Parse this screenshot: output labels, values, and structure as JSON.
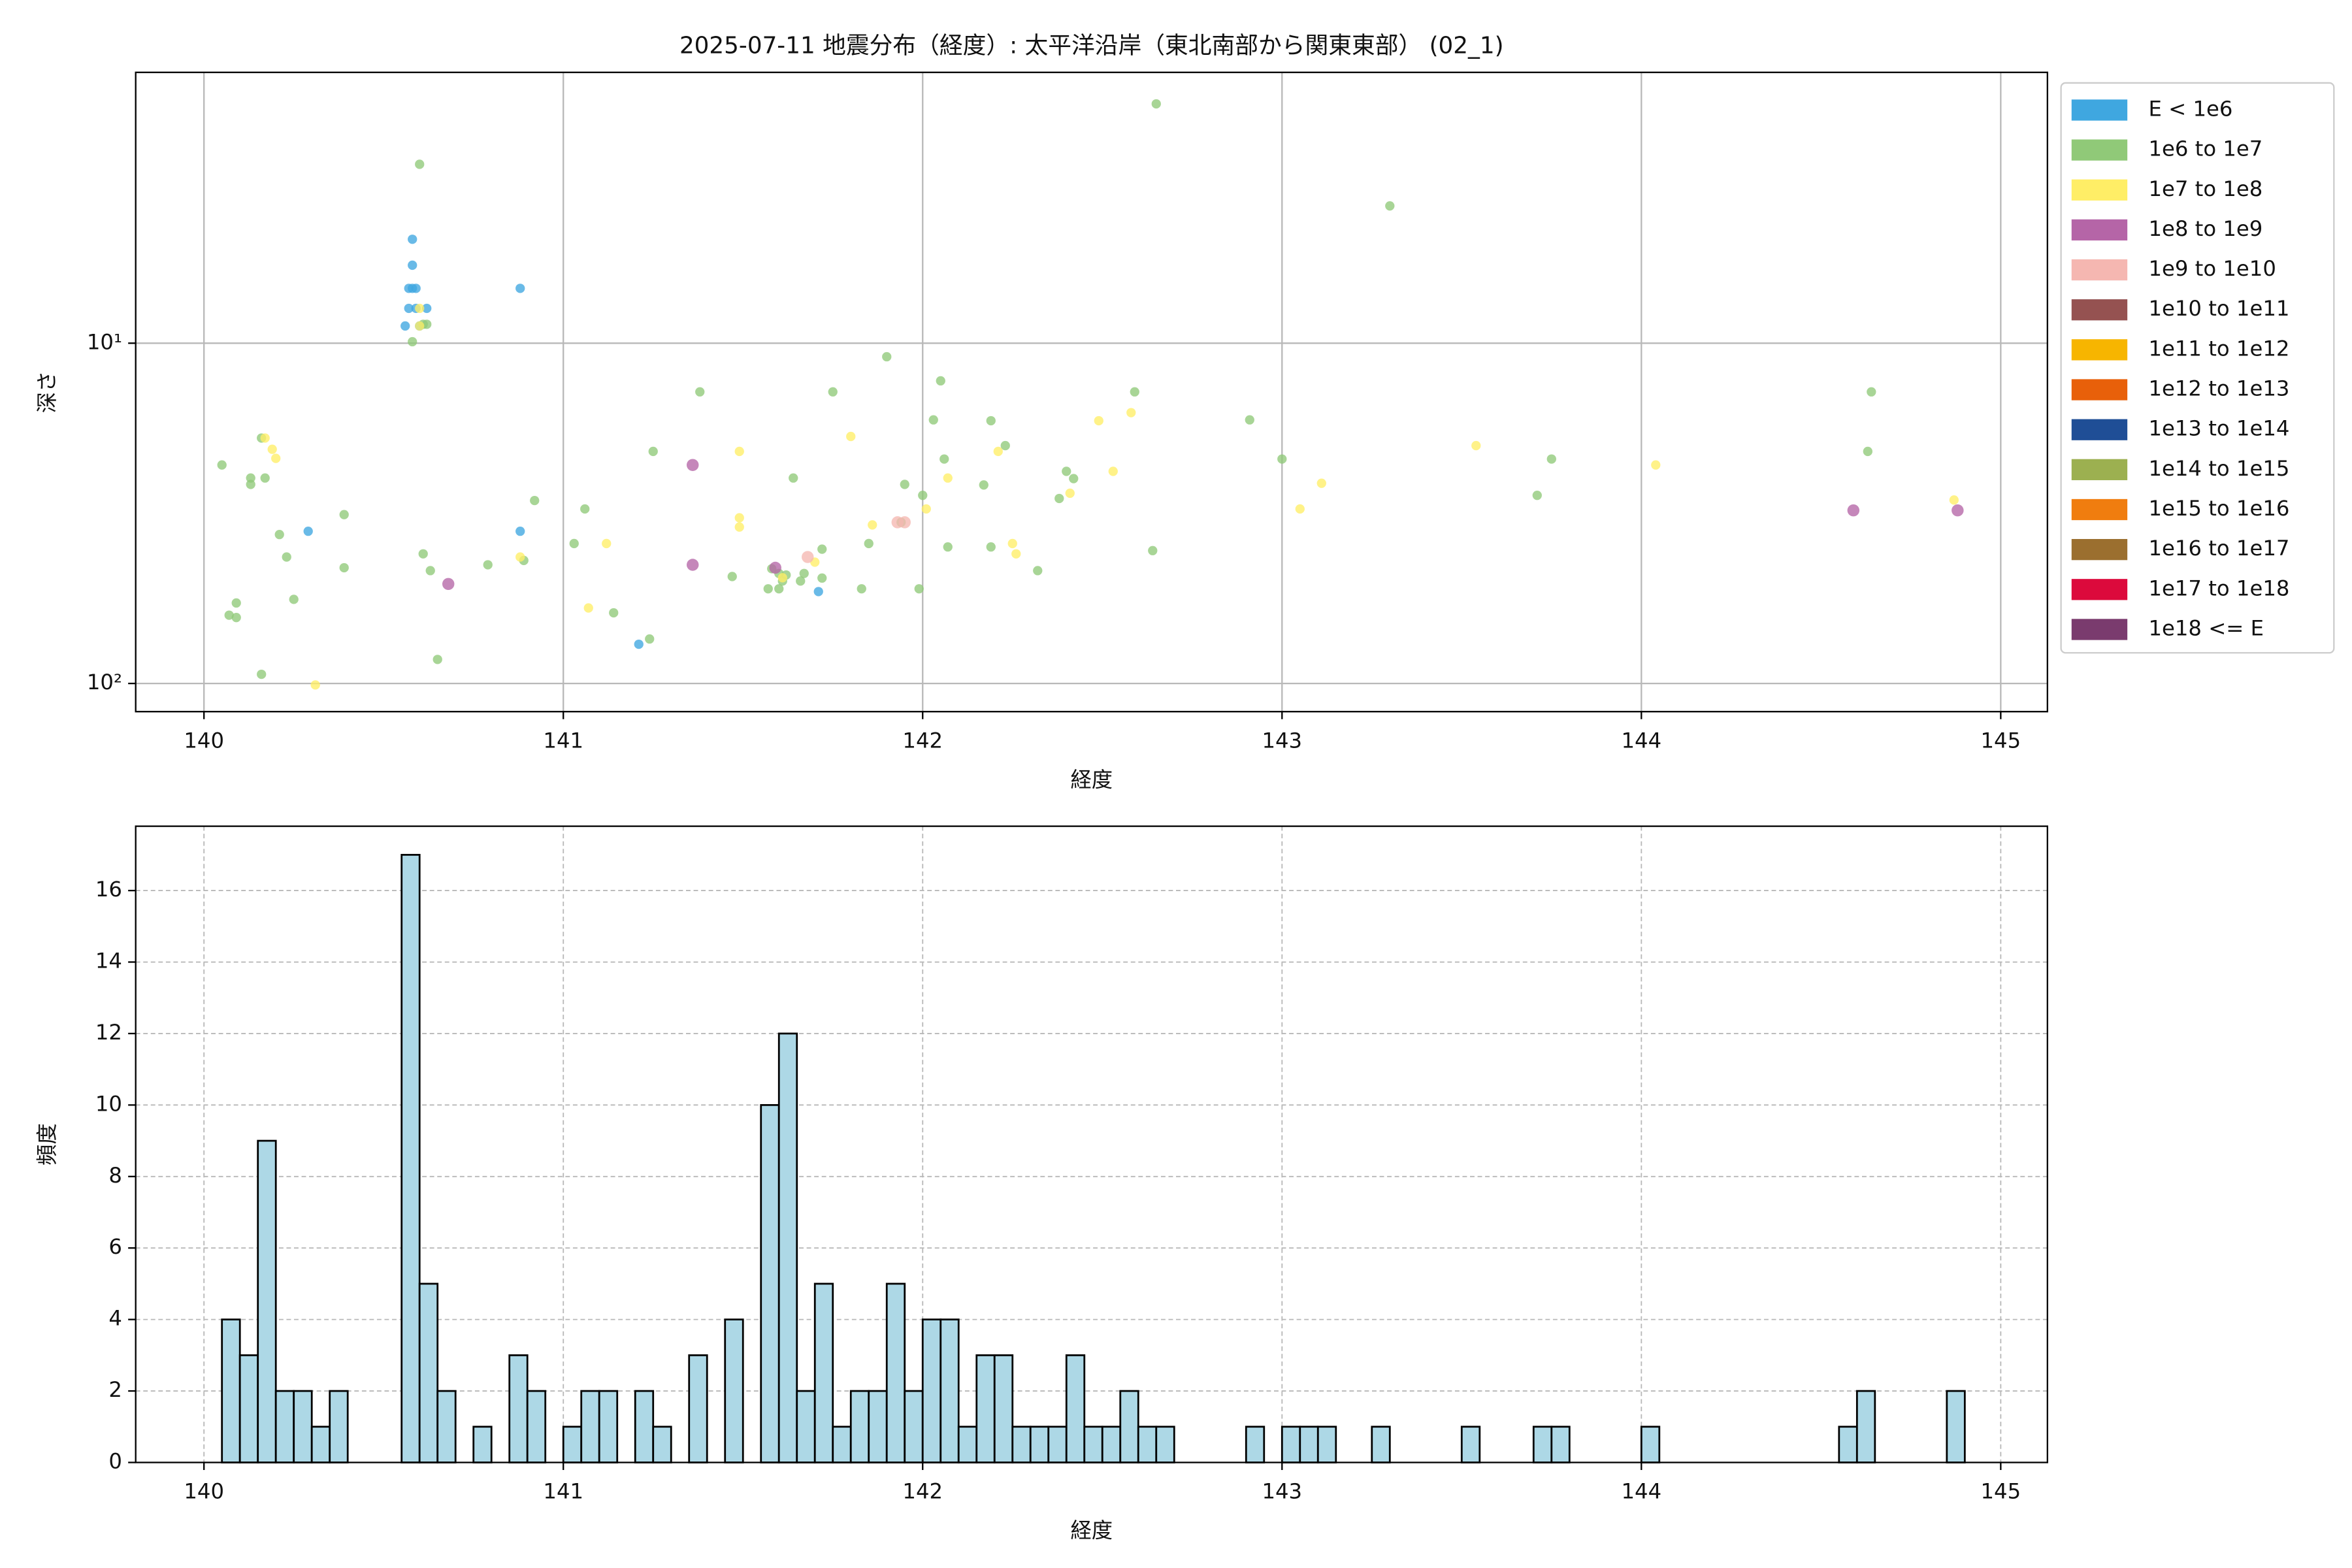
{
  "chart_data": [
    {
      "type": "scatter",
      "title": "2025-07-11 地震分布（経度）: 太平洋沿岸（東北南部から関東東部） (02_1)",
      "xlabel": "経度",
      "ylabel": "深さ",
      "xlim": [
        139.81,
        145.13
      ],
      "ylim": [
        121,
        1.6
      ],
      "yscale": "log",
      "xticks": [
        140,
        141,
        142,
        143,
        144,
        145
      ],
      "yticks": [
        {
          "value": 10,
          "label": "10¹"
        },
        {
          "value": 100,
          "label": "10²"
        }
      ],
      "grid": true,
      "grid_style": "solid",
      "legend": "outside-right",
      "series": [
        {
          "name": "E < 1e6",
          "color": "#3fa7e0",
          "x": [
            140.58,
            140.58,
            140.57,
            140.58,
            140.59,
            140.57,
            140.59,
            140.62,
            140.56,
            140.6,
            140.88,
            140.29,
            140.88,
            141.21,
            141.71
          ],
          "y": [
            4.95,
            5.9,
            6.9,
            6.9,
            6.9,
            7.9,
            7.9,
            7.9,
            8.9,
            8.9,
            6.9,
            35.7,
            35.7,
            76.7,
            53.7
          ]
        },
        {
          "name": "1e6 to 1e7",
          "color": "#90c978",
          "x": [
            142.65,
            140.6,
            143.3,
            144.64,
            141.9,
            142.05,
            141.38,
            141.75,
            142.59,
            142.03,
            142.19,
            142.91,
            142.23,
            144.63,
            141.25,
            142.06,
            143.75,
            143.0,
            140.05,
            142.4,
            142.42,
            140.13,
            140.13,
            140.17,
            140.16,
            141.95,
            141.64,
            142.17,
            143.71,
            142.38,
            140.92,
            142.0,
            140.39,
            141.06,
            141.94,
            140.21,
            141.85,
            141.03,
            142.07,
            142.19,
            140.23,
            140.61,
            142.64,
            141.72,
            140.89,
            140.79,
            140.63,
            140.39,
            142.32,
            141.58,
            141.6,
            141.62,
            141.61,
            141.47,
            141.66,
            141.57,
            141.6,
            141.72,
            141.83,
            141.99,
            141.67,
            140.25,
            140.07,
            140.09,
            140.09,
            141.14,
            141.24,
            140.16,
            140.65,
            140.58,
            140.61,
            140.62
          ],
          "y": [
            1.98,
            2.98,
            3.95,
            13.9,
            10.96,
            12.9,
            13.9,
            13.9,
            13.9,
            16.8,
            16.9,
            16.8,
            20,
            20.8,
            20.8,
            21.9,
            21.9,
            21.9,
            22.8,
            23.8,
            25,
            24.9,
            26,
            24.9,
            19,
            26,
            24.9,
            26.1,
            28,
            28.6,
            29,
            28,
            31.9,
            30.7,
            33.6,
            36.5,
            38.8,
            38.8,
            39.7,
            39.7,
            42.5,
            41.6,
            40.7,
            40.3,
            43.5,
            44.8,
            46.6,
            45.7,
            46.6,
            46,
            47.5,
            48,
            50,
            48.5,
            50,
            52.7,
            52.7,
            49,
            52.7,
            52.7,
            47.5,
            56.6,
            63,
            64,
            58,
            62,
            74,
            94,
            85,
            9.9,
            8.8,
            8.8
          ]
        },
        {
          "name": "1e7 to 1e8",
          "color": "#ffee66",
          "x": [
            140.17,
            140.19,
            140.2,
            143.54,
            144.04,
            144.87,
            143.11,
            143.05,
            142.49,
            142.58,
            142.53,
            142.21,
            141.8,
            141.49,
            141.49,
            141.49,
            142.01,
            142.07,
            142.41,
            141.86,
            141.12,
            141.07,
            140.88,
            141.61,
            142.25,
            142.26,
            140.31,
            141.7,
            140.6,
            140.6
          ],
          "y": [
            19,
            20.5,
            21.8,
            20,
            22.8,
            28.9,
            25.8,
            30.7,
            16.9,
            16,
            23.8,
            20.8,
            18.8,
            20.8,
            32.6,
            34.7,
            30.7,
            24.9,
            27.6,
            34.2,
            38.8,
            60,
            42.5,
            48.9,
            38.8,
            41.6,
            101,
            44,
            7.9,
            8.9
          ]
        },
        {
          "name": "1e8 to 1e9",
          "color": "#b565a7",
          "x": [
            141.36,
            141.36,
            140.68,
            144.59,
            144.88,
            141.59
          ],
          "y": [
            22.8,
            44.8,
            51,
            31,
            31,
            45.7
          ]
        },
        {
          "name": "1e9 to 1e10",
          "color": "#f5b7b1",
          "x": [
            141.68,
            141.93,
            141.95
          ],
          "y": [
            42.5,
            33.6,
            33.6
          ]
        },
        {
          "name": "1e10 to 1e11",
          "color": "#955251",
          "x": [],
          "y": []
        },
        {
          "name": "1e11 to 1e12",
          "color": "#f7b500",
          "x": [],
          "y": []
        },
        {
          "name": "1e12 to 1e13",
          "color": "#e8600a",
          "x": [],
          "y": []
        },
        {
          "name": "1e13 to 1e14",
          "color": "#1f4e96",
          "x": [],
          "y": []
        },
        {
          "name": "1e14 to 1e15",
          "color": "#9cb050",
          "x": [],
          "y": []
        },
        {
          "name": "1e15 to 1e16",
          "color": "#f07d0f",
          "x": [],
          "y": []
        },
        {
          "name": "1e16 to 1e17",
          "color": "#9b6f2f",
          "x": [],
          "y": []
        },
        {
          "name": "1e17 to 1e18",
          "color": "#dc0a3c",
          "x": [],
          "y": []
        },
        {
          "name": "1e18 <= E",
          "color": "#7a3b6e",
          "x": [],
          "y": []
        }
      ]
    },
    {
      "type": "histogram",
      "xlabel": "経度",
      "ylabel": "頻度",
      "xlim": [
        139.81,
        145.13
      ],
      "ylim": [
        0,
        17.8
      ],
      "xticks": [
        140,
        141,
        142,
        143,
        144,
        145
      ],
      "yticks": [
        0,
        2,
        4,
        6,
        8,
        10,
        12,
        14,
        16
      ],
      "grid": true,
      "grid_style": "dashed",
      "color": "#add8e6",
      "edge_color": "#000000",
      "bins": [
        140.05,
        140.1,
        140.15,
        140.2,
        140.25,
        140.3,
        140.35,
        140.4,
        140.45,
        140.5,
        140.55,
        140.6,
        140.65,
        140.7,
        140.75,
        140.8,
        140.85,
        140.9,
        140.95,
        141.0,
        141.05,
        141.1,
        141.15,
        141.2,
        141.25,
        141.3,
        141.35,
        141.4,
        141.45,
        141.5,
        141.55,
        141.6,
        141.65,
        141.7,
        141.75,
        141.8,
        141.85,
        141.9,
        141.95,
        142.0,
        142.05,
        142.1,
        142.15,
        142.2,
        142.25,
        142.3,
        142.35,
        142.4,
        142.45,
        142.5,
        142.55,
        142.6,
        142.65,
        142.7,
        142.75,
        142.8,
        142.85,
        142.9,
        142.95,
        143.0,
        143.05,
        143.1,
        143.15,
        143.2,
        143.25,
        143.3,
        143.35,
        143.4,
        143.45,
        143.5,
        143.55,
        143.6,
        143.65,
        143.7,
        143.75,
        143.8,
        143.85,
        143.9,
        143.95,
        144.0,
        144.05,
        144.1,
        144.15,
        144.2,
        144.25,
        144.3,
        144.35,
        144.4,
        144.45,
        144.5,
        144.55,
        144.6,
        144.65,
        144.7,
        144.75,
        144.8,
        144.85,
        144.9
      ],
      "counts": [
        4,
        3,
        9,
        2,
        2,
        1,
        2,
        0,
        0,
        0,
        17,
        5,
        2,
        0,
        1,
        0,
        3,
        2,
        0,
        1,
        2,
        2,
        0,
        2,
        1,
        0,
        3,
        0,
        4,
        0,
        10,
        12,
        2,
        5,
        1,
        2,
        2,
        5,
        2,
        4,
        4,
        1,
        3,
        3,
        1,
        1,
        1,
        3,
        1,
        1,
        2,
        1,
        1,
        0,
        0,
        0,
        0,
        1,
        0,
        1,
        1,
        1,
        0,
        0,
        1,
        0,
        0,
        0,
        0,
        1,
        0,
        0,
        0,
        1,
        1,
        0,
        0,
        0,
        0,
        1,
        0,
        0,
        0,
        0,
        0,
        0,
        0,
        0,
        0,
        0,
        1,
        2,
        0,
        0,
        0,
        0,
        2
      ]
    }
  ]
}
